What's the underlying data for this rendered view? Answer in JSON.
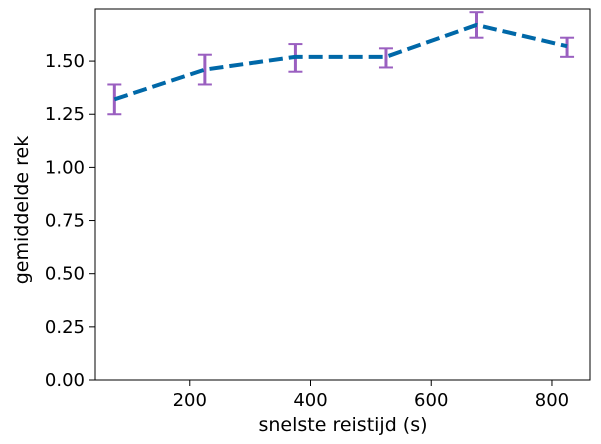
{
  "chart_data": {
    "type": "line",
    "xlabel": "snelste reistijd (s)",
    "ylabel": "gemiddelde rek",
    "xlim": [
      43,
      863
    ],
    "ylim": [
      0,
      1.745
    ],
    "x_ticks": [
      200,
      400,
      600,
      800
    ],
    "x_tick_labels": [
      "200",
      "400",
      "600",
      "800"
    ],
    "y_ticks": [
      0,
      0.25,
      0.5,
      0.75,
      1.0,
      1.25,
      1.5
    ],
    "y_tick_labels": [
      "0.00",
      "0.25",
      "0.50",
      "0.75",
      "1.00",
      "1.25",
      "1.50"
    ],
    "grid": false,
    "series": [
      {
        "x": [
          75,
          225,
          375,
          525,
          675,
          825
        ],
        "y": [
          1.32,
          1.46,
          1.52,
          1.52,
          1.67,
          1.57
        ],
        "err_low": [
          1.25,
          1.39,
          1.45,
          1.47,
          1.61,
          1.52
        ],
        "err_high": [
          1.39,
          1.53,
          1.58,
          1.56,
          1.73,
          1.61
        ],
        "line_color": "#0068a8",
        "line_style": "dashed",
        "errorbar_color": "#9a5fc0"
      }
    ]
  }
}
